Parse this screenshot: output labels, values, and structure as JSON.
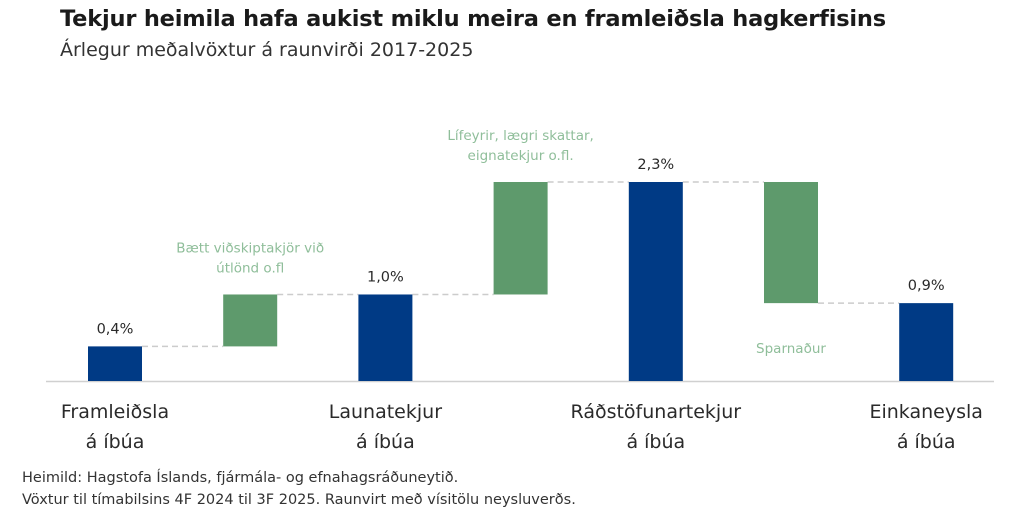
{
  "title": "Tekjur heimila hafa aukist miklu meira en framleiðsla hagkerfisins",
  "subtitle": "Árlegur meðalvöxtur á raunvirði 2017-2025",
  "source": [
    "Heimild: Hagstofa Íslands, fjármála- og efnahagsráðuneytið.",
    "Vöxtur til tímabilsins 4F 2024 til 3F 2025. Raunvirt með vísitölu neysluverðs."
  ],
  "colors": {
    "total": "#003a85",
    "delta": "#5e9a6c",
    "connector": "#cccccc",
    "baseline": "#d0d0d0"
  },
  "chart_data": {
    "type": "bar",
    "subtype": "waterfall",
    "unit": "%",
    "ylim": [
      0,
      2.6
    ],
    "grid": false,
    "bars": [
      {
        "kind": "total",
        "value": 0.4,
        "label": "0,4%",
        "category": [
          "Framleiðsla",
          "á íbúa"
        ]
      },
      {
        "kind": "delta",
        "from": 0.4,
        "to": 1.0,
        "annotation": [
          "Bætt viðskiptakjör við",
          "útlönd o.fl"
        ],
        "annotation_pos": "above"
      },
      {
        "kind": "total",
        "value": 1.0,
        "label": "1,0%",
        "category": [
          "Launatekjur",
          "á íbúa"
        ]
      },
      {
        "kind": "delta",
        "from": 1.0,
        "to": 2.3,
        "annotation": [
          "Lífeyrir, lægri skattar,",
          "eignatekjur o.fl."
        ],
        "annotation_pos": "above"
      },
      {
        "kind": "total",
        "value": 2.3,
        "label": "2,3%",
        "category": [
          "Ráðstöfunartekjur",
          "á íbúa"
        ]
      },
      {
        "kind": "delta",
        "from": 2.3,
        "to": 0.9,
        "annotation": [
          "Sparnaður"
        ],
        "annotation_pos": "below"
      },
      {
        "kind": "total",
        "value": 0.9,
        "label": "0,9%",
        "category": [
          "Einkaneysla",
          "á íbúa"
        ]
      }
    ]
  }
}
